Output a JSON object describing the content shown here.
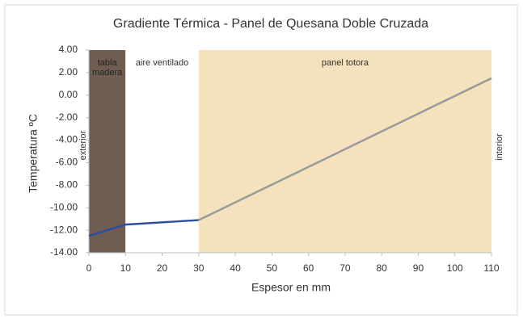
{
  "chart_data": {
    "type": "line",
    "title": "Gradiente Térmica - Panel de Quesana Doble Cruzada",
    "x_label": "Espesor en mm",
    "y_label": "Temperatura ºC",
    "xlim": [
      0,
      110
    ],
    "xticks": [
      0,
      10,
      20,
      30,
      40,
      50,
      60,
      70,
      80,
      90,
      100,
      110
    ],
    "ylim": [
      -14,
      4
    ],
    "yticks": [
      {
        "value": 4,
        "label": "4.00"
      },
      {
        "value": 2,
        "label": "2.00"
      },
      {
        "value": 0,
        "label": "0.00"
      },
      {
        "value": -2,
        "label": "-2.00"
      },
      {
        "value": -4,
        "label": "-4.00"
      },
      {
        "value": -6,
        "label": "-6.00"
      },
      {
        "value": -8,
        "label": "-8.00"
      },
      {
        "value": -10,
        "label": "-10.00"
      },
      {
        "value": -12,
        "label": "-12.00"
      },
      {
        "value": -14,
        "label": "-14.00"
      }
    ],
    "grid": false,
    "regions": [
      {
        "start": 0,
        "end": 10,
        "label": "tabla madera",
        "color": "#6e5d50"
      },
      {
        "start": 10,
        "end": 30,
        "label": "aire ventilado",
        "color": "#ffffff"
      },
      {
        "start": 30,
        "end": 110,
        "label": "panel totora",
        "color": "#f3e2bd"
      }
    ],
    "side_labels": {
      "left": "exterior",
      "right": "interior"
    },
    "series": [
      {
        "x": [
          0,
          10,
          30
        ],
        "values": [
          -12.5,
          -11.5,
          -11.1
        ],
        "color": "#2f4f9e"
      },
      {
        "x": [
          30,
          110
        ],
        "values": [
          -11.1,
          1.5
        ],
        "color": "#9a9a9a"
      }
    ]
  }
}
